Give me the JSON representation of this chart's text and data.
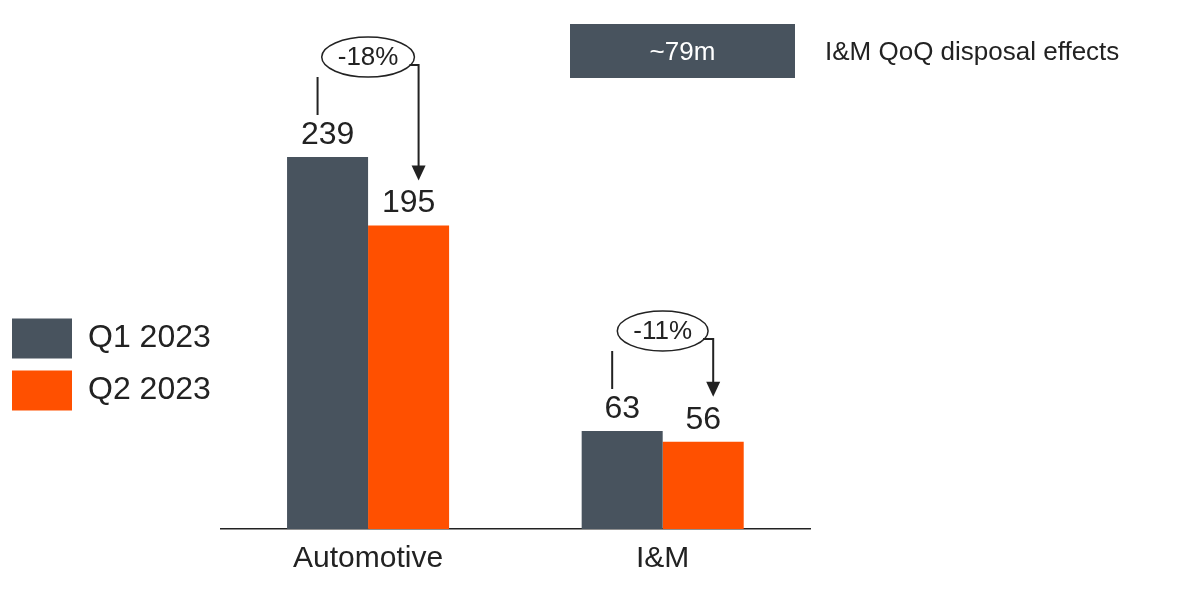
{
  "chart_data": {
    "type": "bar",
    "categories": [
      "Automotive",
      "I&M"
    ],
    "series": [
      {
        "name": "Q1 2023",
        "color": "#48535e",
        "values": [
          239,
          63
        ]
      },
      {
        "name": "Q2 2023",
        "color": "#ff5000",
        "values": [
          195,
          56
        ]
      }
    ],
    "data_labels": true,
    "legend": "left",
    "grid": false,
    "annotations": [
      "-18%",
      "-11%",
      "~79m",
      "I&M QoQ disposal effects"
    ]
  }
}
